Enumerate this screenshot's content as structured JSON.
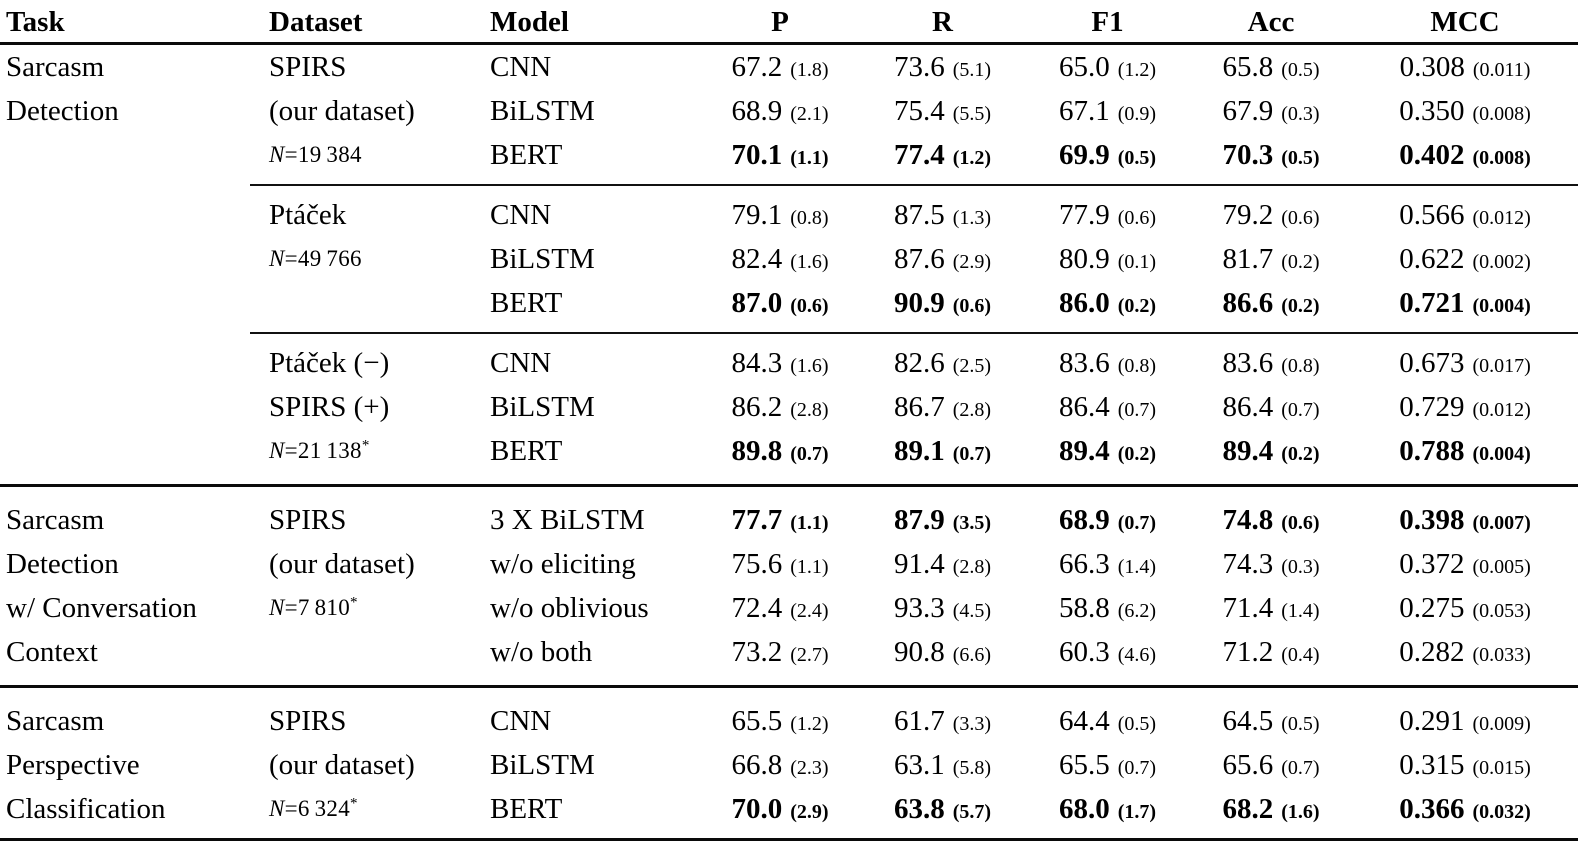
{
  "table": {
    "headers": {
      "task": "Task",
      "dataset": "Dataset",
      "model": "Model",
      "p": "P",
      "r": "R",
      "f1": "F1",
      "acc": "Acc",
      "mcc": "MCC"
    },
    "tasks": [
      {
        "task_name": "Sarcasm Detection",
        "groups": [
          {
            "dataset_name": "SPIRS (our dataset)",
            "n_size": "N=19 384",
            "rows": [
              {
                "task": "Sarcasm",
                "dataset": "SPIRS",
                "n": false,
                "model": "CNN",
                "bold": false,
                "p": [
                  "67.2",
                  "(1.8)"
                ],
                "r": [
                  "73.6",
                  "(5.1)"
                ],
                "f1": [
                  "65.0",
                  "(1.2)"
                ],
                "acc": [
                  "65.8",
                  "(0.5)"
                ],
                "mcc": [
                  "0.308",
                  "(0.011)"
                ]
              },
              {
                "task": "Detection",
                "dataset": "(our dataset)",
                "n": false,
                "model": "BiLSTM",
                "bold": false,
                "p": [
                  "68.9",
                  "(2.1)"
                ],
                "r": [
                  "75.4",
                  "(5.5)"
                ],
                "f1": [
                  "67.1",
                  "(0.9)"
                ],
                "acc": [
                  "67.9",
                  "(0.3)"
                ],
                "mcc": [
                  "0.350",
                  "(0.008)"
                ]
              },
              {
                "task": "",
                "dataset": "N=19 384",
                "n": true,
                "model": "BERT",
                "bold": true,
                "p": [
                  "70.1",
                  "(1.1)"
                ],
                "r": [
                  "77.4",
                  "(1.2)"
                ],
                "f1": [
                  "69.9",
                  "(0.5)"
                ],
                "acc": [
                  "70.3",
                  "(0.5)"
                ],
                "mcc": [
                  "0.402",
                  "(0.008)"
                ]
              }
            ]
          },
          {
            "dataset_name": "Ptáček",
            "n_size": "N=49 766",
            "rows": [
              {
                "task": "",
                "dataset": "Ptáček",
                "n": false,
                "model": "CNN",
                "bold": false,
                "p": [
                  "79.1",
                  "(0.8)"
                ],
                "r": [
                  "87.5",
                  "(1.3)"
                ],
                "f1": [
                  "77.9",
                  "(0.6)"
                ],
                "acc": [
                  "79.2",
                  "(0.6)"
                ],
                "mcc": [
                  "0.566",
                  "(0.012)"
                ]
              },
              {
                "task": "",
                "dataset": "N=49 766",
                "n": true,
                "model": "BiLSTM",
                "bold": false,
                "p": [
                  "82.4",
                  "(1.6)"
                ],
                "r": [
                  "87.6",
                  "(2.9)"
                ],
                "f1": [
                  "80.9",
                  "(0.1)"
                ],
                "acc": [
                  "81.7",
                  "(0.2)"
                ],
                "mcc": [
                  "0.622",
                  "(0.002)"
                ]
              },
              {
                "task": "",
                "dataset": "",
                "n": false,
                "model": "BERT",
                "bold": true,
                "p": [
                  "87.0",
                  "(0.6)"
                ],
                "r": [
                  "90.9",
                  "(0.6)"
                ],
                "f1": [
                  "86.0",
                  "(0.2)"
                ],
                "acc": [
                  "86.6",
                  "(0.2)"
                ],
                "mcc": [
                  "0.721",
                  "(0.004)"
                ]
              }
            ]
          },
          {
            "dataset_name": "Ptáček (−) SPIRS (+)",
            "n_size": "N=21 138*",
            "rows": [
              {
                "task": "",
                "dataset": "Ptáček (−)",
                "n": false,
                "model": "CNN",
                "bold": false,
                "p": [
                  "84.3",
                  "(1.6)"
                ],
                "r": [
                  "82.6",
                  "(2.5)"
                ],
                "f1": [
                  "83.6",
                  "(0.8)"
                ],
                "acc": [
                  "83.6",
                  "(0.8)"
                ],
                "mcc": [
                  "0.673",
                  "(0.017)"
                ]
              },
              {
                "task": "",
                "dataset": "SPIRS (+)",
                "n": false,
                "model": "BiLSTM",
                "bold": false,
                "p": [
                  "86.2",
                  "(2.8)"
                ],
                "r": [
                  "86.7",
                  "(2.8)"
                ],
                "f1": [
                  "86.4",
                  "(0.7)"
                ],
                "acc": [
                  "86.4",
                  "(0.7)"
                ],
                "mcc": [
                  "0.729",
                  "(0.012)"
                ]
              },
              {
                "task": "",
                "dataset": "N=21 138*",
                "n": true,
                "model": "BERT",
                "bold": true,
                "p": [
                  "89.8",
                  "(0.7)"
                ],
                "r": [
                  "89.1",
                  "(0.7)"
                ],
                "f1": [
                  "89.4",
                  "(0.2)"
                ],
                "acc": [
                  "89.4",
                  "(0.2)"
                ],
                "mcc": [
                  "0.788",
                  "(0.004)"
                ]
              }
            ]
          }
        ]
      },
      {
        "task_name": "Sarcasm Detection w/ Conversation Context",
        "groups": [
          {
            "dataset_name": "SPIRS (our dataset)",
            "n_size": "N=7 810*",
            "rows": [
              {
                "task": "Sarcasm",
                "dataset": "SPIRS",
                "n": false,
                "model": "3 X BiLSTM",
                "bold": true,
                "p": [
                  "77.7",
                  "(1.1)"
                ],
                "r": [
                  "87.9",
                  "(3.5)"
                ],
                "f1": [
                  "68.9",
                  "(0.7)"
                ],
                "acc": [
                  "74.8",
                  "(0.6)"
                ],
                "mcc": [
                  "0.398",
                  "(0.007)"
                ]
              },
              {
                "task": "Detection",
                "dataset": "(our dataset)",
                "n": false,
                "model": "w/o eliciting",
                "bold": false,
                "p": [
                  "75.6",
                  "(1.1)"
                ],
                "r": [
                  "91.4",
                  "(2.8)"
                ],
                "f1": [
                  "66.3",
                  "(1.4)"
                ],
                "acc": [
                  "74.3",
                  "(0.3)"
                ],
                "mcc": [
                  "0.372",
                  "(0.005)"
                ]
              },
              {
                "task": "w/ Conversation",
                "dataset": "N=7 810*",
                "n": true,
                "model": "w/o oblivious",
                "bold": false,
                "p": [
                  "72.4",
                  "(2.4)"
                ],
                "r": [
                  "93.3",
                  "(4.5)"
                ],
                "f1": [
                  "58.8",
                  "(6.2)"
                ],
                "acc": [
                  "71.4",
                  "(1.4)"
                ],
                "mcc": [
                  "0.275",
                  "(0.053)"
                ]
              },
              {
                "task": "Context",
                "dataset": "",
                "n": false,
                "model": "w/o both",
                "bold": false,
                "p": [
                  "73.2",
                  "(2.7)"
                ],
                "r": [
                  "90.8",
                  "(6.6)"
                ],
                "f1": [
                  "60.3",
                  "(4.6)"
                ],
                "acc": [
                  "71.2",
                  "(0.4)"
                ],
                "mcc": [
                  "0.282",
                  "(0.033)"
                ]
              }
            ]
          }
        ]
      },
      {
        "task_name": "Sarcasm Perspective Classification",
        "groups": [
          {
            "dataset_name": "SPIRS (our dataset)",
            "n_size": "N=6 324*",
            "rows": [
              {
                "task": "Sarcasm",
                "dataset": "SPIRS",
                "n": false,
                "model": "CNN",
                "bold": false,
                "p": [
                  "65.5",
                  "(1.2)"
                ],
                "r": [
                  "61.7",
                  "(3.3)"
                ],
                "f1": [
                  "64.4",
                  "(0.5)"
                ],
                "acc": [
                  "64.5",
                  "(0.5)"
                ],
                "mcc": [
                  "0.291",
                  "(0.009)"
                ]
              },
              {
                "task": "Perspective",
                "dataset": "(our dataset)",
                "n": false,
                "model": "BiLSTM",
                "bold": false,
                "p": [
                  "66.8",
                  "(2.3)"
                ],
                "r": [
                  "63.1",
                  "(5.8)"
                ],
                "f1": [
                  "65.5",
                  "(0.7)"
                ],
                "acc": [
                  "65.6",
                  "(0.7)"
                ],
                "mcc": [
                  "0.315",
                  "(0.015)"
                ]
              },
              {
                "task": "Classification",
                "dataset": "N=6 324*",
                "n": true,
                "model": "BERT",
                "bold": true,
                "p": [
                  "70.0",
                  "(2.9)"
                ],
                "r": [
                  "63.8",
                  "(5.7)"
                ],
                "f1": [
                  "68.0",
                  "(1.7)"
                ],
                "acc": [
                  "68.2",
                  "(1.6)"
                ],
                "mcc": [
                  "0.366",
                  "(0.032)"
                ]
              }
            ]
          }
        ]
      }
    ]
  }
}
